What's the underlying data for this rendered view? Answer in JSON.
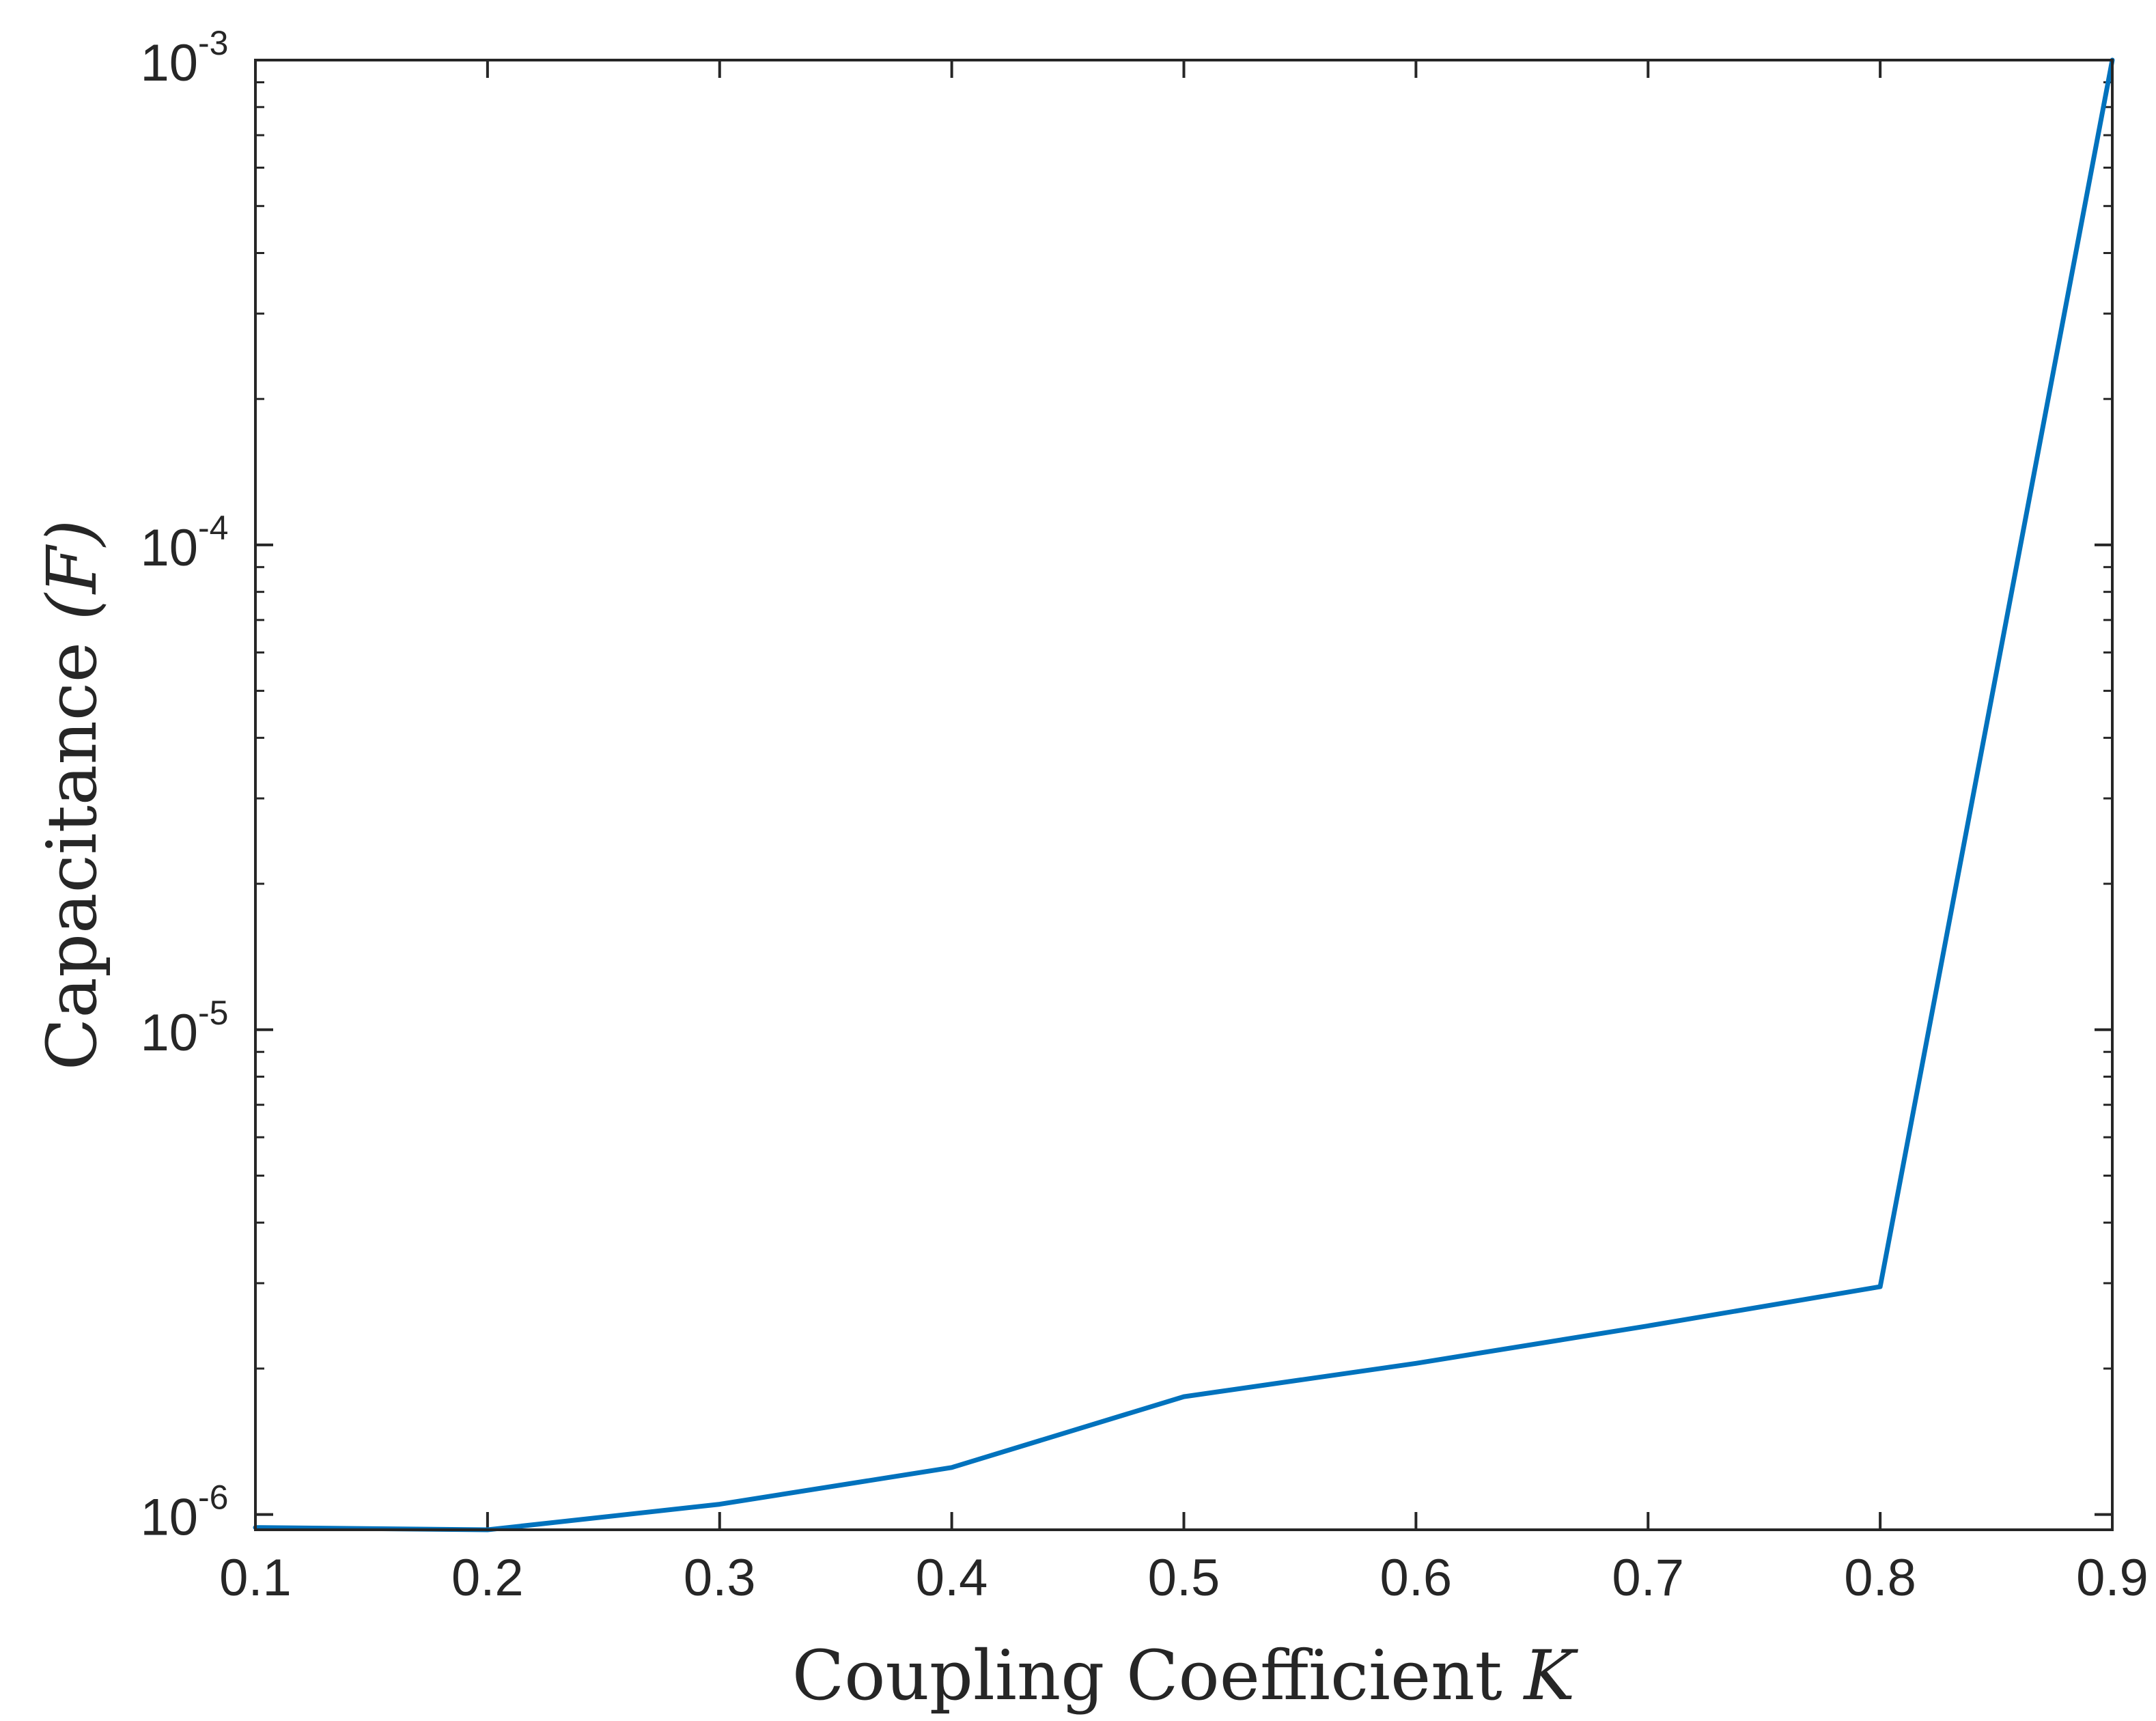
{
  "chart_data": {
    "type": "line",
    "xlabel": "Coupling Coefficient",
    "xlabel_symbol": "K",
    "ylabel": "Capacitance",
    "ylabel_symbol": "(F)",
    "xlim": [
      0.1,
      0.9
    ],
    "ylim": [
      9.3e-07,
      0.001
    ],
    "yscale": "log",
    "grid": false,
    "x_ticks": [
      "0.1",
      "0.2",
      "0.3",
      "0.4",
      "0.5",
      "0.6",
      "0.7",
      "0.8",
      "0.9"
    ],
    "y_ticks": [
      {
        "base": "10",
        "exp": "-6",
        "value": 1e-06
      },
      {
        "base": "10",
        "exp": "-5",
        "value": 1e-05
      },
      {
        "base": "10",
        "exp": "-4",
        "value": 0.0001
      },
      {
        "base": "10",
        "exp": "-3",
        "value": 0.001
      }
    ],
    "series": [
      {
        "color": "#0072bd",
        "x": [
          0.1,
          0.2,
          0.3,
          0.4,
          0.5,
          0.6,
          0.7,
          0.8,
          0.9
        ],
        "y": [
          9.4e-07,
          9.3e-07,
          1.05e-06,
          1.25e-06,
          1.75e-06,
          2.05e-06,
          2.45e-06,
          2.95e-06,
          0.001
        ]
      }
    ]
  }
}
